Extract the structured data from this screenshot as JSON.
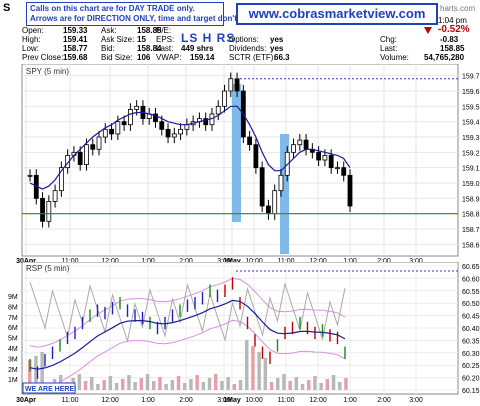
{
  "header": {
    "symbol": "S",
    "notice_line1": "Calls on this chart are for DAY TRADE only.",
    "notice_line2": "Arrows are for DIRECTION ONLY, time and target don't count.",
    "website": "www.cobrasmarketview.com",
    "site_fragment": "harts.com",
    "time": "1:04 pm",
    "pct_change": "-0.52%",
    "pattern": "LS H RS",
    "stats": {
      "open": {
        "label": "Open:",
        "value": "159.33"
      },
      "high": {
        "label": "High:",
        "value": "159.41"
      },
      "low": {
        "label": "Low:",
        "value": "158.77"
      },
      "prev_close": {
        "label": "Prev Close:",
        "value": "159.68"
      },
      "ask": {
        "label": "Ask:",
        "value": "158.85"
      },
      "ask_size": {
        "label": "Ask Size:",
        "value": "15"
      },
      "bid": {
        "label": "Bid:",
        "value": "158.84"
      },
      "bid_size": {
        "label": "Bid Size:",
        "value": "106"
      },
      "pe": {
        "label": "P/E:",
        "value": ""
      },
      "eps": {
        "label": "EPS:",
        "value": ""
      },
      "last_shrs": {
        "label": "Last:",
        "value": "449 shrs"
      },
      "vwap": {
        "label": "VWAP:",
        "value": "159.14"
      },
      "options": {
        "label": "Options:",
        "value": "yes"
      },
      "dividends": {
        "label": "Dividends:",
        "value": "yes"
      },
      "sctr": {
        "label": "SCTR (ETF):",
        "value": "66.3"
      },
      "chg": {
        "label": "Chg:",
        "value": "-0.83"
      },
      "last": {
        "label": "Last:",
        "value": "158.85"
      },
      "volume": {
        "label": "Volume:",
        "value": "54,765,280"
      }
    }
  },
  "chart_data": [
    {
      "type": "candlestick",
      "title": "SPY (5 min)",
      "ylim": [
        158.55,
        159.75
      ],
      "y_ticks": [
        "159.7",
        "159.6",
        "159.5",
        "159.4",
        "159.3",
        "159.2",
        "159.1",
        "159.0",
        "158.9",
        "158.8",
        "158.7",
        "158.6"
      ],
      "x_ticks": [
        "30Apr",
        "11:00",
        "12:00",
        "1:00",
        "2:00",
        "3:00",
        "1May",
        "10:00",
        "11:00",
        "12:00",
        "1:00",
        "2:00",
        "3:00"
      ],
      "support_line": 158.8,
      "prev_high_dotted": 159.68,
      "close_series": [
        159.05,
        158.9,
        158.75,
        158.88,
        158.95,
        159.1,
        159.18,
        159.2,
        159.12,
        159.25,
        159.22,
        159.3,
        159.35,
        159.32,
        159.4,
        159.38,
        159.48,
        159.5,
        159.42,
        159.45,
        159.4,
        159.35,
        159.3,
        159.32,
        159.35,
        159.38,
        159.4,
        159.42,
        159.38,
        159.45,
        159.5,
        159.6,
        159.68,
        159.6,
        159.3,
        159.25,
        159.1,
        158.85,
        158.8,
        158.95,
        159.05,
        159.2,
        159.25,
        159.28,
        159.22,
        159.2,
        159.15,
        159.18,
        159.1,
        159.1,
        159.05,
        158.85
      ],
      "vwap_series": [
        159.0,
        158.98,
        158.96,
        158.98,
        159.02,
        159.08,
        159.13,
        159.18,
        159.22,
        159.26,
        159.3,
        159.33,
        159.36,
        159.38,
        159.41,
        159.43,
        159.45,
        159.46,
        159.46,
        159.45,
        159.44,
        159.42,
        159.4,
        159.39,
        159.38,
        159.38,
        159.39,
        159.4,
        159.41,
        159.42,
        159.44,
        159.47,
        159.5,
        159.5,
        159.45,
        159.38,
        159.3,
        159.2,
        159.12,
        159.08,
        159.08,
        159.12,
        159.16,
        159.2,
        159.22,
        159.22,
        159.21,
        159.2,
        159.19,
        159.18,
        159.16,
        159.1
      ]
    },
    {
      "type": "bar",
      "title": "RSP (5 min)",
      "ylim": [
        60.15,
        60.65
      ],
      "y_ticks": [
        "60.65",
        "60.60",
        "60.55",
        "60.50",
        "60.45",
        "60.40",
        "60.35",
        "60.30",
        "60.25",
        "60.20",
        "60.15"
      ],
      "volume_ticks": [
        "9M",
        "8M",
        "7M",
        "6M",
        "5M",
        "4M",
        "3M",
        "2M",
        "1M"
      ],
      "annotation": "WE ARE HERE!"
    }
  ],
  "colors": {
    "accent": "#2040c0",
    "down": "#c00000",
    "highlight": "#6aaee6",
    "support": "#2a8a2a"
  }
}
